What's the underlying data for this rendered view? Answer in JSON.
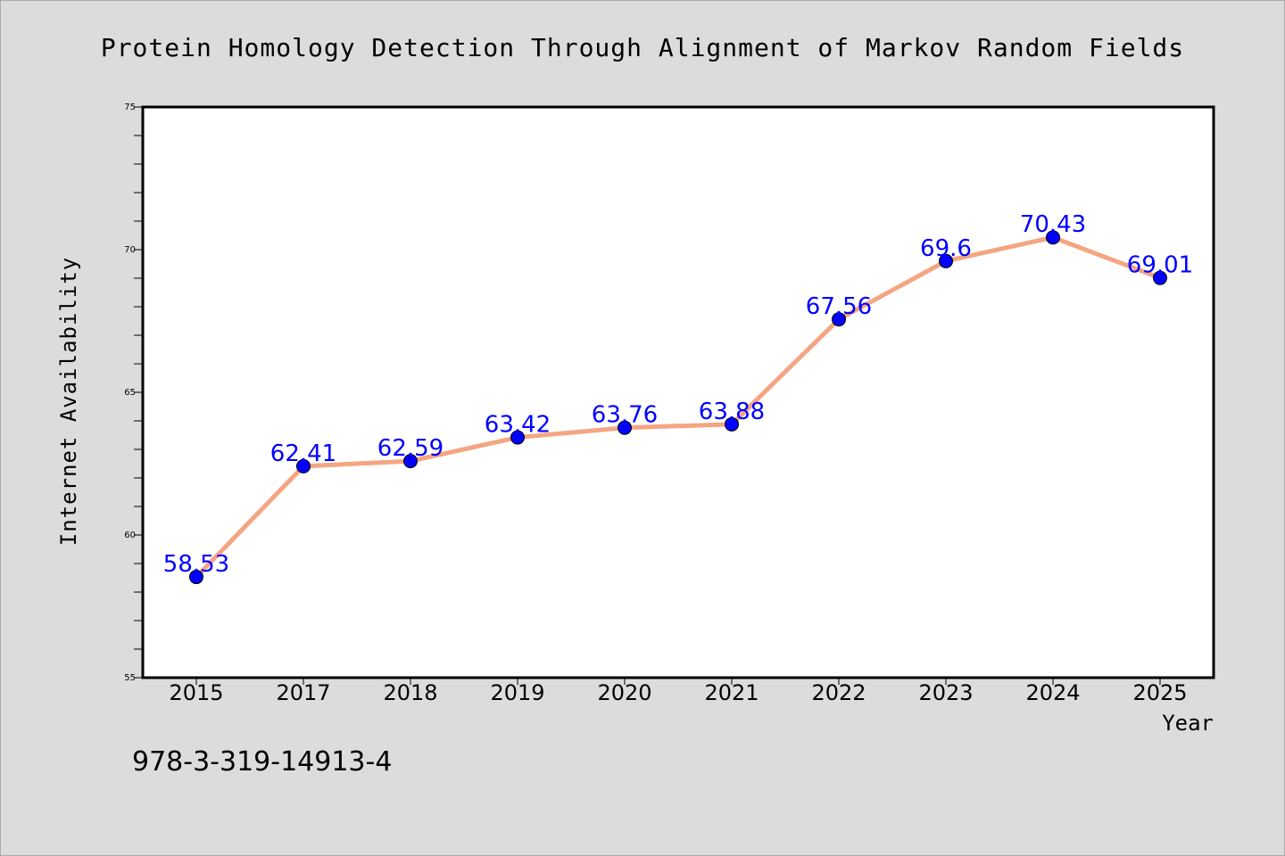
{
  "chart_data": {
    "type": "line",
    "title": "Protein Homology Detection Through Alignment of Markov Random Fields",
    "xlabel": "Year",
    "ylabel": "Internet Availability",
    "categories": [
      "2015",
      "2017",
      "2018",
      "2019",
      "2020",
      "2021",
      "2022",
      "2023",
      "2024",
      "2025"
    ],
    "series": [
      {
        "values": [
          58.53,
          62.41,
          62.59,
          63.42,
          63.76,
          63.88,
          67.56,
          69.6,
          70.43,
          69.01
        ],
        "data_labels": [
          "58.53",
          "62.41",
          "62.59",
          "63.42",
          "63.76",
          "63.88",
          "67.56",
          "69.6",
          "70.43",
          "69.01"
        ]
      }
    ],
    "ylim": [
      55,
      75
    ],
    "yticks": [
      "55",
      "60",
      "65",
      "70",
      "75"
    ],
    "grid": false,
    "legend": "none",
    "line_color": "#f4a582",
    "marker_color": "#0000ff",
    "label_color": "#0000ff"
  },
  "footer": {
    "isbn": "978-3-319-14913-4"
  }
}
